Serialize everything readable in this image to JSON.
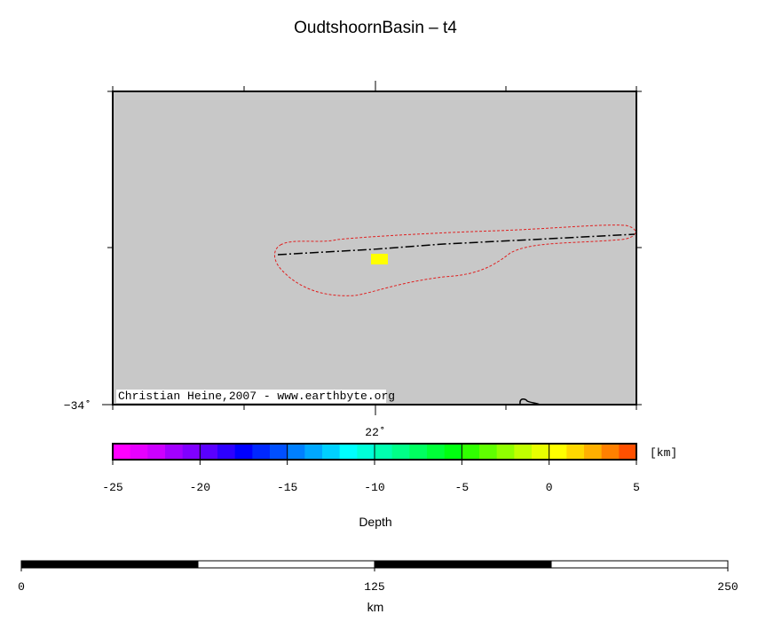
{
  "title": "OudtshoornBasin – t4",
  "map": {
    "lon_tick": {
      "value": 22,
      "label": "22˚"
    },
    "lat_tick": {
      "value": -34,
      "label": "−34˚"
    },
    "credit": "Christian Heine,2007 - www.earthbyte.org",
    "background": "#c8c8c8"
  },
  "colorbar": {
    "range": [
      -25,
      5
    ],
    "ticks": [
      -25,
      -20,
      -15,
      -10,
      -5,
      0,
      5
    ],
    "unit": "[km]",
    "label": "Depth",
    "colors": [
      "#ff00ff",
      "#e600ff",
      "#cc00ff",
      "#a300ff",
      "#8000ff",
      "#5a00ff",
      "#2d00ff",
      "#0000ff",
      "#0028ff",
      "#0050ff",
      "#0080ff",
      "#00a8ff",
      "#00d0ff",
      "#00ffff",
      "#00ffd8",
      "#00ffb0",
      "#00ff88",
      "#00ff60",
      "#00ff38",
      "#00ff10",
      "#30ff00",
      "#60ff00",
      "#90ff00",
      "#c0ff00",
      "#e8ff00",
      "#ffff00",
      "#ffd800",
      "#ffb000",
      "#ff8000",
      "#ff5000"
    ]
  },
  "scalebar": {
    "range": [
      0,
      250
    ],
    "ticks": [
      0,
      125,
      250
    ],
    "unit": "km"
  }
}
